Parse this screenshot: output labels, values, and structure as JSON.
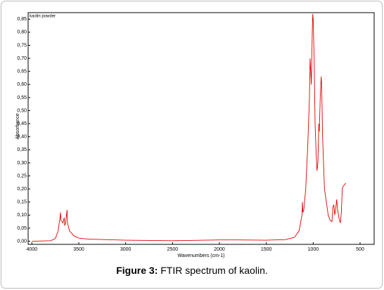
{
  "chart_data": {
    "type": "line",
    "legend_position": "upper-left",
    "x_label": "Wavenumbers (cm-1)",
    "y_label": "Absorbance",
    "caption_label": "Figure 3:",
    "caption": "FTIR spectrum of kaolin.",
    "xlim": [
      4040,
      350
    ],
    "ylim": [
      -0.012,
      0.875
    ],
    "xticks": [
      4000,
      3500,
      3000,
      2500,
      2000,
      1500,
      1000,
      500
    ],
    "yticks": [
      {
        "value": 0.0,
        "label": "0,00"
      },
      {
        "value": 0.05,
        "label": "0,05"
      },
      {
        "value": 0.1,
        "label": "0,10"
      },
      {
        "value": 0.15,
        "label": "0,15"
      },
      {
        "value": 0.2,
        "label": "0,20"
      },
      {
        "value": 0.25,
        "label": "0,25"
      },
      {
        "value": 0.3,
        "label": "0,30"
      },
      {
        "value": 0.35,
        "label": "0,35"
      },
      {
        "value": 0.4,
        "label": "0,40"
      },
      {
        "value": 0.45,
        "label": "0,45"
      },
      {
        "value": 0.5,
        "label": "0,50"
      },
      {
        "value": 0.55,
        "label": "0,55"
      },
      {
        "value": 0.6,
        "label": "0,60"
      },
      {
        "value": 0.65,
        "label": "0,65"
      },
      {
        "value": 0.7,
        "label": "0,70"
      },
      {
        "value": 0.75,
        "label": "0,75"
      },
      {
        "value": 0.8,
        "label": "0,80"
      },
      {
        "value": 0.85,
        "label": "0,85"
      }
    ],
    "x": [
      4000,
      3800,
      3750,
      3720,
      3700,
      3695,
      3690,
      3670,
      3655,
      3650,
      3640,
      3625,
      3620,
      3600,
      3550,
      3500,
      3400,
      3000,
      2500,
      2000,
      1800,
      1500,
      1300,
      1200,
      1150,
      1120,
      1115,
      1110,
      1100,
      1080,
      1060,
      1040,
      1033,
      1030,
      1020,
      1010,
      1005,
      1000,
      990,
      980,
      970,
      960,
      950,
      940,
      935,
      925,
      915,
      910,
      900,
      880,
      860,
      840,
      820,
      800,
      790,
      780,
      770,
      755,
      750,
      740,
      720,
      710,
      700,
      690,
      680,
      660,
      650
    ],
    "series": [
      {
        "name": "kaolin powder",
        "color": "#e00000",
        "values": [
          0.0,
          0.002,
          0.01,
          0.04,
          0.09,
          0.11,
          0.08,
          0.07,
          0.09,
          0.06,
          0.07,
          0.12,
          0.07,
          0.04,
          0.02,
          0.012,
          0.008,
          0.004,
          0.002,
          0.005,
          0.005,
          0.004,
          0.006,
          0.015,
          0.04,
          0.1,
          0.15,
          0.11,
          0.12,
          0.2,
          0.35,
          0.55,
          0.7,
          0.68,
          0.6,
          0.8,
          0.87,
          0.85,
          0.7,
          0.45,
          0.35,
          0.27,
          0.3,
          0.45,
          0.42,
          0.55,
          0.63,
          0.6,
          0.4,
          0.2,
          0.15,
          0.1,
          0.08,
          0.075,
          0.13,
          0.14,
          0.1,
          0.14,
          0.16,
          0.12,
          0.08,
          0.07,
          0.11,
          0.2,
          0.21,
          0.22,
          0.22
        ]
      }
    ]
  }
}
